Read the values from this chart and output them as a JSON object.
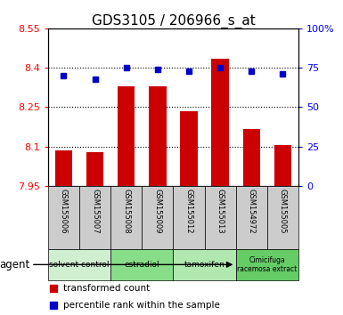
{
  "title": "GDS3105 / 206966_s_at",
  "samples": [
    "GSM155006",
    "GSM155007",
    "GSM155008",
    "GSM155009",
    "GSM155012",
    "GSM155013",
    "GSM154972",
    "GSM155005"
  ],
  "bar_values": [
    8.085,
    8.08,
    8.33,
    8.33,
    8.235,
    8.435,
    8.165,
    8.105
  ],
  "scatter_values": [
    70,
    68,
    75,
    74,
    73,
    75,
    73,
    71
  ],
  "ylim_left": [
    7.95,
    8.55
  ],
  "ylim_right": [
    0,
    100
  ],
  "yticks_left": [
    7.95,
    8.1,
    8.25,
    8.4,
    8.55
  ],
  "yticks_right": [
    0,
    25,
    50,
    75,
    100
  ],
  "ytick_labels_left": [
    "7.95",
    "8.1",
    "8.25",
    "8.4",
    "8.55"
  ],
  "ytick_labels_right": [
    "0",
    "25",
    "50",
    "75",
    "100%"
  ],
  "hlines": [
    8.1,
    8.25,
    8.4
  ],
  "bar_color": "#cc0000",
  "scatter_color": "#0000cc",
  "bar_bottom": 7.95,
  "agent_groups": [
    {
      "label": "solvent control",
      "start": 0,
      "end": 2,
      "color": "#d0eed0"
    },
    {
      "label": "estradiol",
      "start": 2,
      "end": 4,
      "color": "#88dd88"
    },
    {
      "label": "tamoxifen",
      "start": 4,
      "end": 6,
      "color": "#b0e8b0"
    },
    {
      "label": "Cimicifuga\nracemosa extract",
      "start": 6,
      "end": 8,
      "color": "#66cc66"
    }
  ],
  "legend_bar_label": "transformed count",
  "legend_scatter_label": "percentile rank within the sample",
  "agent_label": "agent",
  "title_fontsize": 11,
  "tick_fontsize": 8,
  "bar_width": 0.55
}
